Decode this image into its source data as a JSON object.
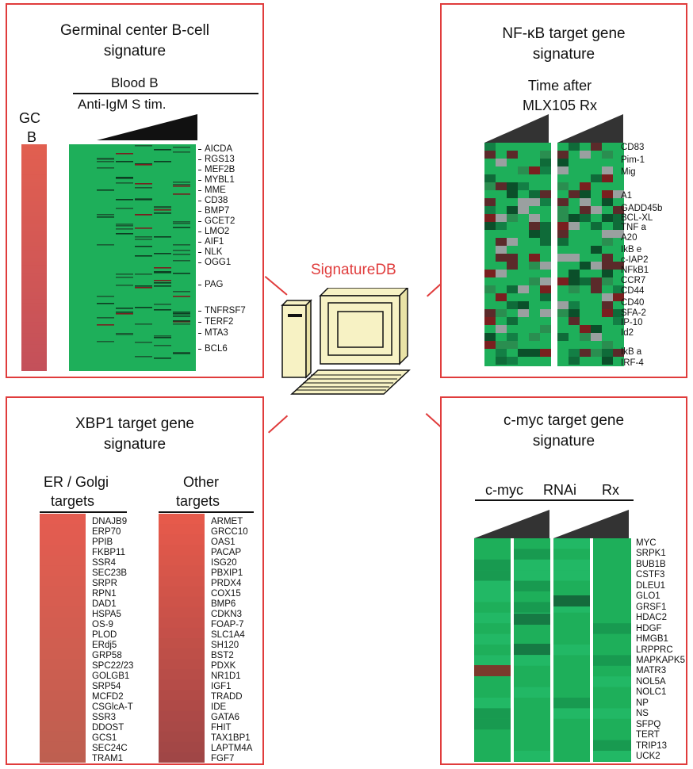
{
  "center": {
    "label": "SignatureDB"
  },
  "colors": {
    "panel_border": "#e03c3c",
    "heat_green": "#1eaf5a",
    "label_red": "#e03c3c"
  },
  "panels": {
    "gc": {
      "title_line1": "Germinal center B-cell",
      "title_line2": "signature",
      "blood_b": "Blood B",
      "anti_igm": "Anti-IgM S tim.",
      "gcb_line1": "GC",
      "gcb_line2": "B",
      "genes": [
        "AICDA",
        "RGS13",
        "MEF2B",
        "MYBL1",
        "MME",
        "CD38",
        "BMP7",
        "GCET2",
        "LMO2",
        "AIF1",
        "NLK",
        "OGG1",
        "PAG",
        "TNFRSF7",
        "TERF2",
        "MTA3",
        "BCL6"
      ]
    },
    "nfkb": {
      "title_line1": "NF-κB target gene",
      "title_line2": "signature",
      "time_line1": "Time after",
      "time_line2": "MLX105 Rx",
      "genes": [
        "CD83",
        "Pim-1",
        "Mig",
        "A1",
        "GADD45b",
        "BCL-XL",
        "TNF a",
        "A20",
        "IkB e",
        "c-IAP2",
        "NFkB1",
        "CCR7",
        "CD44",
        "CD40",
        "SFA-2",
        "IP-10",
        "Id2",
        "IkB a",
        "IRF-4"
      ]
    },
    "xbp1": {
      "title_line1": "XBP1 target gene",
      "title_line2": "signature",
      "er_line1": "ER / Golgi",
      "er_line2": "targets",
      "other_line1": "Other",
      "other_line2": "targets",
      "er_genes": [
        "DNAJB9",
        "ERP70",
        "PPIB",
        "FKBP11",
        "SSR4",
        "SEC23B",
        "SRPR",
        "RPN1",
        "DAD1",
        "HSPA5",
        "OS-9",
        "PLOD",
        "ERdj5",
        "GRP58",
        "SPC22/23",
        "GOLGB1",
        "SRP54",
        "MCFD2",
        "CSGlcA-T",
        "SSR3",
        "DDOST",
        "GCS1",
        "SEC24C",
        "TRAM1"
      ],
      "other_genes": [
        "ARMET",
        "GRCC10",
        "OAS1",
        "PACAP",
        "ISG20",
        "PBXIP1",
        "PRDX4",
        "COX15",
        "BMP6",
        "CDKN3",
        "FOAP-7",
        "SLC1A4",
        "SH120",
        "BST2",
        "PDXK",
        "NR1D1",
        "IGF1",
        "TRADD",
        "IDE",
        "GATA6",
        "FHIT",
        "TAX1BP1",
        "LAPTM4A",
        "FGF7"
      ]
    },
    "myc": {
      "title_line1": "c-myc target gene",
      "title_line2": "signature",
      "hdr_cmyc": "c-myc",
      "hdr_rnai": "RNAi",
      "hdr_rx": "Rx",
      "genes": [
        "MYC",
        "SRPK1",
        "BUB1B",
        "CSTF3",
        "DLEU1",
        "GLO1",
        "GRSF1",
        "HDAC2",
        "HDGF",
        "HMGB1",
        "LRPPRC",
        "MAPKAPK5",
        "MATR3",
        "NOL5A",
        "NOLC1",
        "NP",
        "NS",
        "SFPQ",
        "TERT",
        "TRIP13",
        "UCK2"
      ]
    }
  }
}
